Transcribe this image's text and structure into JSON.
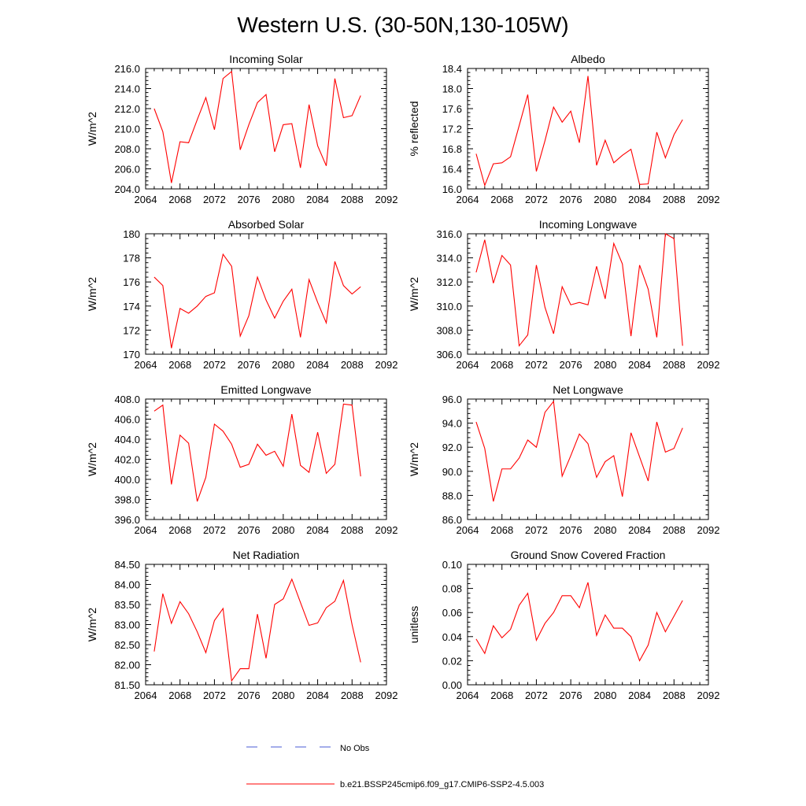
{
  "figure": {
    "title": "Western U.S. (30-50N,130-105W)",
    "series_color": "#ff0000",
    "obs_color": "#4a5bd6"
  },
  "legend": {
    "obs_label": "No Obs",
    "model_label": "b.e21.BSSP245cmip6.f09_g17.CMIP6-SSP2-4.5.003"
  },
  "chart_data": [
    {
      "type": "line",
      "title": "Incoming Solar",
      "ylabel": "W/m^2",
      "xlim": [
        2064,
        2092
      ],
      "ylim": [
        204,
        216
      ],
      "xticks": [
        "2064",
        "2068",
        "2072",
        "2076",
        "2080",
        "2084",
        "2088",
        "2092"
      ],
      "yticks": [
        "204.0",
        "206.0",
        "208.0",
        "210.0",
        "212.0",
        "214.0",
        "216.0"
      ],
      "x": [
        2065,
        2066,
        2067,
        2068,
        2069,
        2070,
        2071,
        2072,
        2073,
        2074,
        2075,
        2076,
        2077,
        2078,
        2079,
        2080,
        2081,
        2082,
        2083,
        2084,
        2085,
        2086,
        2087,
        2088,
        2089
      ],
      "series": [
        {
          "name": "b.e21.BSSP245cmip6.f09_g17.CMIP6-SSP2-4.5.003",
          "values": [
            212.0,
            209.7,
            204.6,
            208.7,
            208.6,
            210.9,
            213.1,
            209.9,
            215.0,
            215.7,
            207.9,
            210.4,
            212.6,
            213.4,
            207.7,
            210.4,
            210.5,
            206.1,
            212.4,
            208.3,
            206.3,
            215.0,
            211.1,
            211.3,
            213.3
          ]
        }
      ]
    },
    {
      "type": "line",
      "title": "Albedo",
      "ylabel": "% reflected",
      "xlim": [
        2064,
        2092
      ],
      "ylim": [
        16,
        18.4
      ],
      "xticks": [
        "2064",
        "2068",
        "2072",
        "2076",
        "2080",
        "2084",
        "2088",
        "2092"
      ],
      "yticks": [
        "16.0",
        "16.4",
        "16.8",
        "17.2",
        "17.6",
        "18.0",
        "18.4"
      ],
      "x": [
        2065,
        2066,
        2067,
        2068,
        2069,
        2070,
        2071,
        2072,
        2073,
        2074,
        2075,
        2076,
        2077,
        2078,
        2079,
        2080,
        2081,
        2082,
        2083,
        2084,
        2085,
        2086,
        2087,
        2088,
        2089
      ],
      "series": [
        {
          "name": "b.e21.BSSP245cmip6.f09_g17.CMIP6-SSP2-4.5.003",
          "values": [
            16.7,
            16.07,
            16.5,
            16.52,
            16.64,
            17.26,
            17.88,
            16.35,
            16.96,
            17.63,
            17.33,
            17.55,
            16.92,
            18.25,
            16.47,
            16.97,
            16.52,
            16.67,
            16.79,
            16.09,
            16.1,
            17.13,
            16.62,
            17.08,
            17.38
          ]
        }
      ]
    },
    {
      "type": "line",
      "title": "Absorbed Solar",
      "ylabel": "W/m^2",
      "xlim": [
        2064,
        2092
      ],
      "ylim": [
        170,
        180
      ],
      "xticks": [
        "2064",
        "2068",
        "2072",
        "2076",
        "2080",
        "2084",
        "2088",
        "2092"
      ],
      "yticks": [
        "170",
        "172",
        "174",
        "176",
        "178",
        "180"
      ],
      "x": [
        2065,
        2066,
        2067,
        2068,
        2069,
        2070,
        2071,
        2072,
        2073,
        2074,
        2075,
        2076,
        2077,
        2078,
        2079,
        2080,
        2081,
        2082,
        2083,
        2084,
        2085,
        2086,
        2087,
        2088,
        2089
      ],
      "series": [
        {
          "name": "b.e21.BSSP245cmip6.f09_g17.CMIP6-SSP2-4.5.003",
          "values": [
            176.4,
            175.7,
            170.5,
            173.8,
            173.4,
            174.0,
            174.8,
            175.1,
            178.3,
            177.3,
            171.5,
            173.2,
            176.4,
            174.5,
            173.0,
            174.4,
            175.4,
            171.4,
            176.2,
            174.3,
            172.6,
            177.7,
            175.7,
            175.0,
            175.6
          ]
        }
      ]
    },
    {
      "type": "line",
      "title": "Incoming Longwave",
      "ylabel": "W/m^2",
      "xlim": [
        2064,
        2092
      ],
      "ylim": [
        306,
        316
      ],
      "xticks": [
        "2064",
        "2068",
        "2072",
        "2076",
        "2080",
        "2084",
        "2088",
        "2092"
      ],
      "yticks": [
        "306.0",
        "308.0",
        "310.0",
        "312.0",
        "314.0",
        "316.0"
      ],
      "x": [
        2065,
        2066,
        2067,
        2068,
        2069,
        2070,
        2071,
        2072,
        2073,
        2074,
        2075,
        2076,
        2077,
        2078,
        2079,
        2080,
        2081,
        2082,
        2083,
        2084,
        2085,
        2086,
        2087,
        2088,
        2089
      ],
      "series": [
        {
          "name": "b.e21.BSSP245cmip6.f09_g17.CMIP6-SSP2-4.5.003",
          "values": [
            312.8,
            315.5,
            311.9,
            314.2,
            313.4,
            306.7,
            307.6,
            313.4,
            309.9,
            307.7,
            311.6,
            310.1,
            310.3,
            310.1,
            313.3,
            310.6,
            315.2,
            313.5,
            307.5,
            313.4,
            311.4,
            307.4,
            316.0,
            315.6,
            306.7
          ]
        }
      ]
    },
    {
      "type": "line",
      "title": "Emitted Longwave",
      "ylabel": "W/m^2",
      "xlim": [
        2064,
        2092
      ],
      "ylim": [
        396,
        408
      ],
      "xticks": [
        "2064",
        "2068",
        "2072",
        "2076",
        "2080",
        "2084",
        "2088",
        "2092"
      ],
      "yticks": [
        "396.0",
        "398.0",
        "400.0",
        "402.0",
        "404.0",
        "406.0",
        "408.0"
      ],
      "x": [
        2065,
        2066,
        2067,
        2068,
        2069,
        2070,
        2071,
        2072,
        2073,
        2074,
        2075,
        2076,
        2077,
        2078,
        2079,
        2080,
        2081,
        2082,
        2083,
        2084,
        2085,
        2086,
        2087,
        2088,
        2089
      ],
      "series": [
        {
          "name": "b.e21.BSSP245cmip6.f09_g17.CMIP6-SSP2-4.5.003",
          "values": [
            406.8,
            407.4,
            399.5,
            404.4,
            403.6,
            397.8,
            400.2,
            405.5,
            404.8,
            403.5,
            401.2,
            401.5,
            403.5,
            402.4,
            402.8,
            401.3,
            406.5,
            401.4,
            400.7,
            404.7,
            400.6,
            401.5,
            407.5,
            407.4,
            400.3
          ]
        }
      ]
    },
    {
      "type": "line",
      "title": "Net Longwave",
      "ylabel": "W/m^2",
      "xlim": [
        2064,
        2092
      ],
      "ylim": [
        86,
        96
      ],
      "xticks": [
        "2064",
        "2068",
        "2072",
        "2076",
        "2080",
        "2084",
        "2088",
        "2092"
      ],
      "yticks": [
        "86.0",
        "88.0",
        "90.0",
        "92.0",
        "94.0",
        "96.0"
      ],
      "x": [
        2065,
        2066,
        2067,
        2068,
        2069,
        2070,
        2071,
        2072,
        2073,
        2074,
        2075,
        2076,
        2077,
        2078,
        2079,
        2080,
        2081,
        2082,
        2083,
        2084,
        2085,
        2086,
        2087,
        2088,
        2089
      ],
      "series": [
        {
          "name": "b.e21.BSSP245cmip6.f09_g17.CMIP6-SSP2-4.5.003",
          "values": [
            94.1,
            91.9,
            87.5,
            90.2,
            90.2,
            91.1,
            92.6,
            92.0,
            94.9,
            95.8,
            89.6,
            91.3,
            93.1,
            92.3,
            89.5,
            90.8,
            91.3,
            87.9,
            93.2,
            91.2,
            89.2,
            94.1,
            91.6,
            91.9,
            93.6
          ]
        }
      ]
    },
    {
      "type": "line",
      "title": "Net Radiation",
      "ylabel": "W/m^2",
      "xlim": [
        2064,
        2092
      ],
      "ylim": [
        81.5,
        84.5
      ],
      "xticks": [
        "2064",
        "2068",
        "2072",
        "2076",
        "2080",
        "2084",
        "2088",
        "2092"
      ],
      "yticks": [
        "81.50",
        "82.00",
        "82.50",
        "83.00",
        "83.50",
        "84.00",
        "84.50"
      ],
      "x": [
        2065,
        2066,
        2067,
        2068,
        2069,
        2070,
        2071,
        2072,
        2073,
        2074,
        2075,
        2076,
        2077,
        2078,
        2079,
        2080,
        2081,
        2082,
        2083,
        2084,
        2085,
        2086,
        2087,
        2088,
        2089
      ],
      "series": [
        {
          "name": "b.e21.BSSP245cmip6.f09_g17.CMIP6-SSP2-4.5.003",
          "values": [
            82.33,
            83.77,
            83.03,
            83.57,
            83.27,
            82.82,
            82.3,
            83.1,
            83.4,
            81.6,
            81.9,
            81.9,
            83.26,
            82.16,
            83.5,
            83.64,
            84.13,
            83.55,
            82.98,
            83.04,
            83.42,
            83.58,
            84.1,
            83.0,
            82.06
          ]
        }
      ]
    },
    {
      "type": "line",
      "title": "Ground Snow Covered Fraction",
      "ylabel": "unitless",
      "xlim": [
        2064,
        2092
      ],
      "ylim": [
        0,
        0.1
      ],
      "xticks": [
        "2064",
        "2068",
        "2072",
        "2076",
        "2080",
        "2084",
        "2088",
        "2092"
      ],
      "yticks": [
        "0.00",
        "0.02",
        "0.04",
        "0.06",
        "0.08",
        "0.10"
      ],
      "x": [
        2065,
        2066,
        2067,
        2068,
        2069,
        2070,
        2071,
        2072,
        2073,
        2074,
        2075,
        2076,
        2077,
        2078,
        2079,
        2080,
        2081,
        2082,
        2083,
        2084,
        2085,
        2086,
        2087,
        2088,
        2089
      ],
      "series": [
        {
          "name": "b.e21.BSSP245cmip6.f09_g17.CMIP6-SSP2-4.5.003",
          "values": [
            0.038,
            0.026,
            0.049,
            0.039,
            0.046,
            0.066,
            0.076,
            0.037,
            0.051,
            0.06,
            0.074,
            0.074,
            0.064,
            0.085,
            0.041,
            0.058,
            0.047,
            0.047,
            0.04,
            0.02,
            0.033,
            0.06,
            0.044,
            0.057,
            0.07
          ]
        }
      ]
    }
  ]
}
